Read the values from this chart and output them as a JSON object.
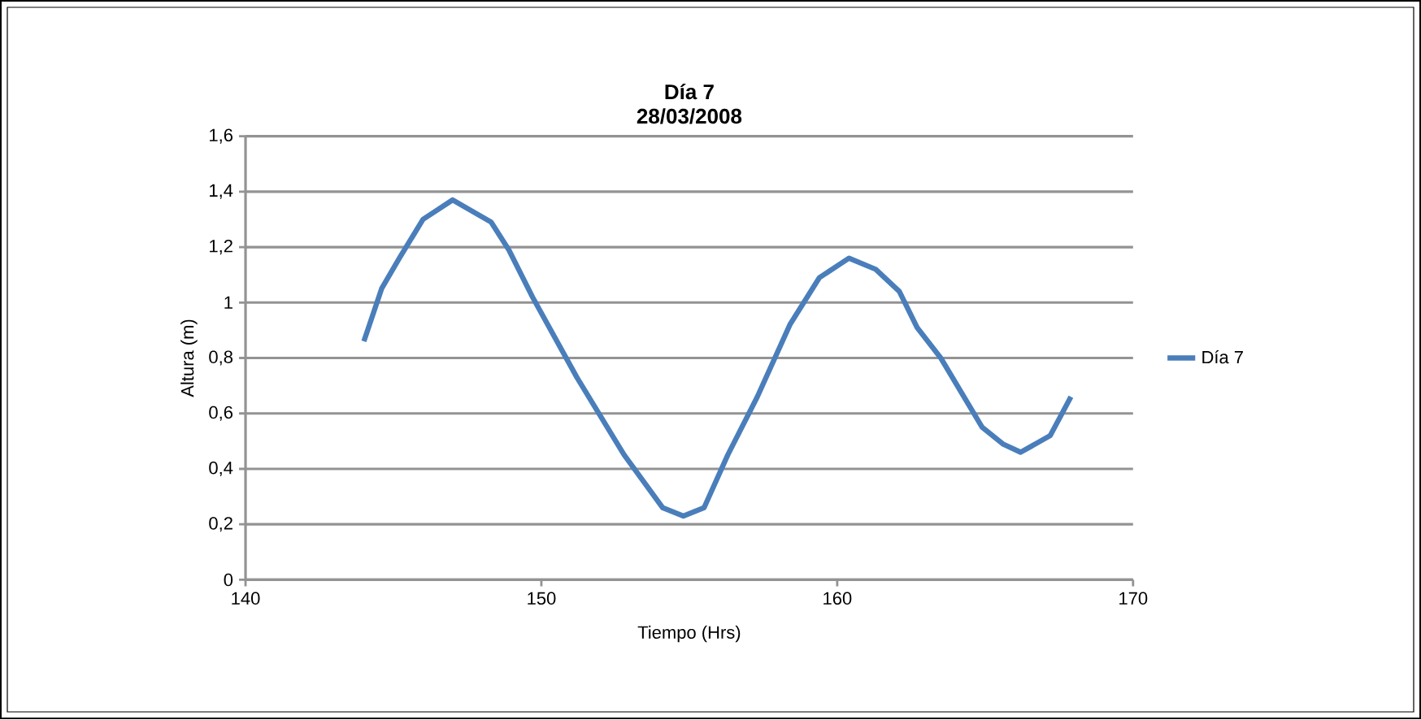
{
  "chart_data": {
    "type": "line",
    "title": "Día 7\n28/03/2008",
    "xlabel": "Tiempo (Hrs)",
    "ylabel": "Altura (m)",
    "xlim": [
      140,
      170
    ],
    "xticks": [
      140,
      150,
      160,
      170
    ],
    "ylim": [
      0,
      1.6
    ],
    "yticks": [
      {
        "value": 0,
        "label": "0"
      },
      {
        "value": 0.2,
        "label": "0,2"
      },
      {
        "value": 0.4,
        "label": "0,4"
      },
      {
        "value": 0.6,
        "label": "0,6"
      },
      {
        "value": 0.8,
        "label": "0,8"
      },
      {
        "value": 1,
        "label": "1"
      },
      {
        "value": 1.2,
        "label": "1,2"
      },
      {
        "value": 1.4,
        "label": "1,4"
      },
      {
        "value": 1.6,
        "label": "1,6"
      }
    ],
    "grid": "y",
    "legend": "right",
    "marker": "none",
    "line_style": "solid",
    "series": [
      {
        "name": "Día 7",
        "color": "#4a7ebb",
        "x": [
          144.0,
          144.6,
          145.2,
          146.0,
          147.0,
          148.3,
          148.9,
          149.7,
          151.2,
          152.8,
          154.1,
          154.8,
          155.5,
          156.3,
          157.3,
          158.4,
          159.4,
          160.4,
          161.3,
          162.1,
          162.7,
          163.5,
          164.9,
          165.6,
          166.2,
          167.2,
          167.9
        ],
        "values": [
          0.86,
          1.05,
          1.16,
          1.3,
          1.37,
          1.29,
          1.19,
          1.02,
          0.73,
          0.45,
          0.26,
          0.23,
          0.26,
          0.45,
          0.66,
          0.92,
          1.09,
          1.16,
          1.12,
          1.04,
          0.91,
          0.8,
          0.55,
          0.49,
          0.46,
          0.52,
          0.66
        ]
      }
    ]
  }
}
